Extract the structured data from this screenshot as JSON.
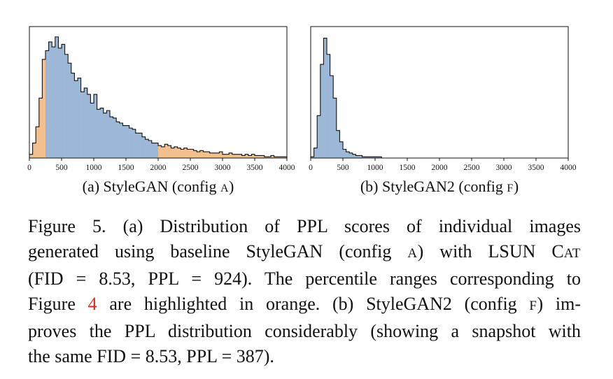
{
  "charts": [
    {
      "id": "a",
      "sub_caption_prefix": "(a) StyleGAN (config ",
      "sub_caption_config": "A",
      "sub_caption_suffix": ")",
      "x_ticks": [
        "0",
        "500",
        "1000",
        "1500",
        "2000",
        "2500",
        "3000",
        "3500",
        "4000"
      ],
      "colors": {
        "blue": "#9cb8d6",
        "orange": "#f2bf8f"
      }
    },
    {
      "id": "b",
      "sub_caption_prefix": "(b) StyleGAN2 (config ",
      "sub_caption_config": "F",
      "sub_caption_suffix": ")",
      "x_ticks": [
        "0",
        "500",
        "1000",
        "1500",
        "2000",
        "2500",
        "3000",
        "3500",
        "4000"
      ],
      "colors": {
        "blue": "#9cb8d6"
      }
    }
  ],
  "chart_data": [
    {
      "type": "bar",
      "xlim": [
        0,
        4000
      ],
      "ylim": [
        0,
        100
      ],
      "bin_width": 50,
      "highlight_ranges": [
        [
          0,
          250
        ],
        [
          2000,
          4000
        ]
      ],
      "values": [
        3,
        12,
        25,
        48,
        79,
        86,
        93,
        89,
        97,
        88,
        91,
        83,
        76,
        68,
        62,
        64,
        53,
        56,
        51,
        44,
        51,
        39,
        40,
        36,
        38,
        33,
        32,
        29,
        28,
        26,
        26,
        24,
        23,
        20,
        20,
        17,
        15,
        14,
        12,
        12,
        10,
        9,
        11,
        10,
        8,
        9,
        8,
        7,
        8,
        7,
        7,
        6,
        5,
        6,
        5,
        5,
        4,
        4,
        4,
        5,
        3,
        3,
        4,
        3,
        3,
        3,
        2,
        3,
        2,
        3,
        2,
        2,
        2,
        1,
        1,
        2,
        1,
        1,
        1,
        1
      ]
    },
    {
      "type": "bar",
      "xlim": [
        0,
        4000
      ],
      "ylim": [
        0,
        100
      ],
      "bin_width": 50,
      "values": [
        1,
        8,
        34,
        75,
        96,
        83,
        66,
        48,
        22,
        13,
        7,
        5,
        4,
        3,
        2,
        2,
        1,
        1,
        1,
        1,
        1,
        1,
        0,
        0,
        0,
        0,
        0,
        0,
        0,
        0,
        0,
        0,
        0,
        0,
        0,
        0,
        0,
        0,
        0,
        0,
        0,
        0,
        0,
        0,
        0,
        0,
        0,
        0,
        0,
        0,
        0,
        0,
        0,
        0,
        0,
        0,
        0,
        0,
        0,
        0,
        0,
        0,
        0,
        0,
        0,
        0,
        0,
        0,
        0,
        0,
        0,
        0,
        0,
        0,
        0,
        0,
        0,
        0,
        0,
        0
      ]
    }
  ],
  "caption": {
    "l1_a": "Figure 5.   (a) Distribution of PPL scores of individual images",
    "l2_a": "generated using baseline StyleGAN (config ",
    "l2_sc1": "A",
    "l2_b": ") with LSUN C",
    "l2_sc2": "AT",
    "l3": "(FID = 8.53, PPL = 924).  The percentile ranges corresponding to",
    "l4_a": "Figure ",
    "l4_ref": "4",
    "l4_b": " are highlighted in orange. (b) StyleGAN2 (config ",
    "l4_sc": "F",
    "l4_c": ") im-",
    "l5": "proves the PPL distribution considerably (showing a snapshot with",
    "l6": "the same FID = 8.53, PPL = 387)."
  }
}
